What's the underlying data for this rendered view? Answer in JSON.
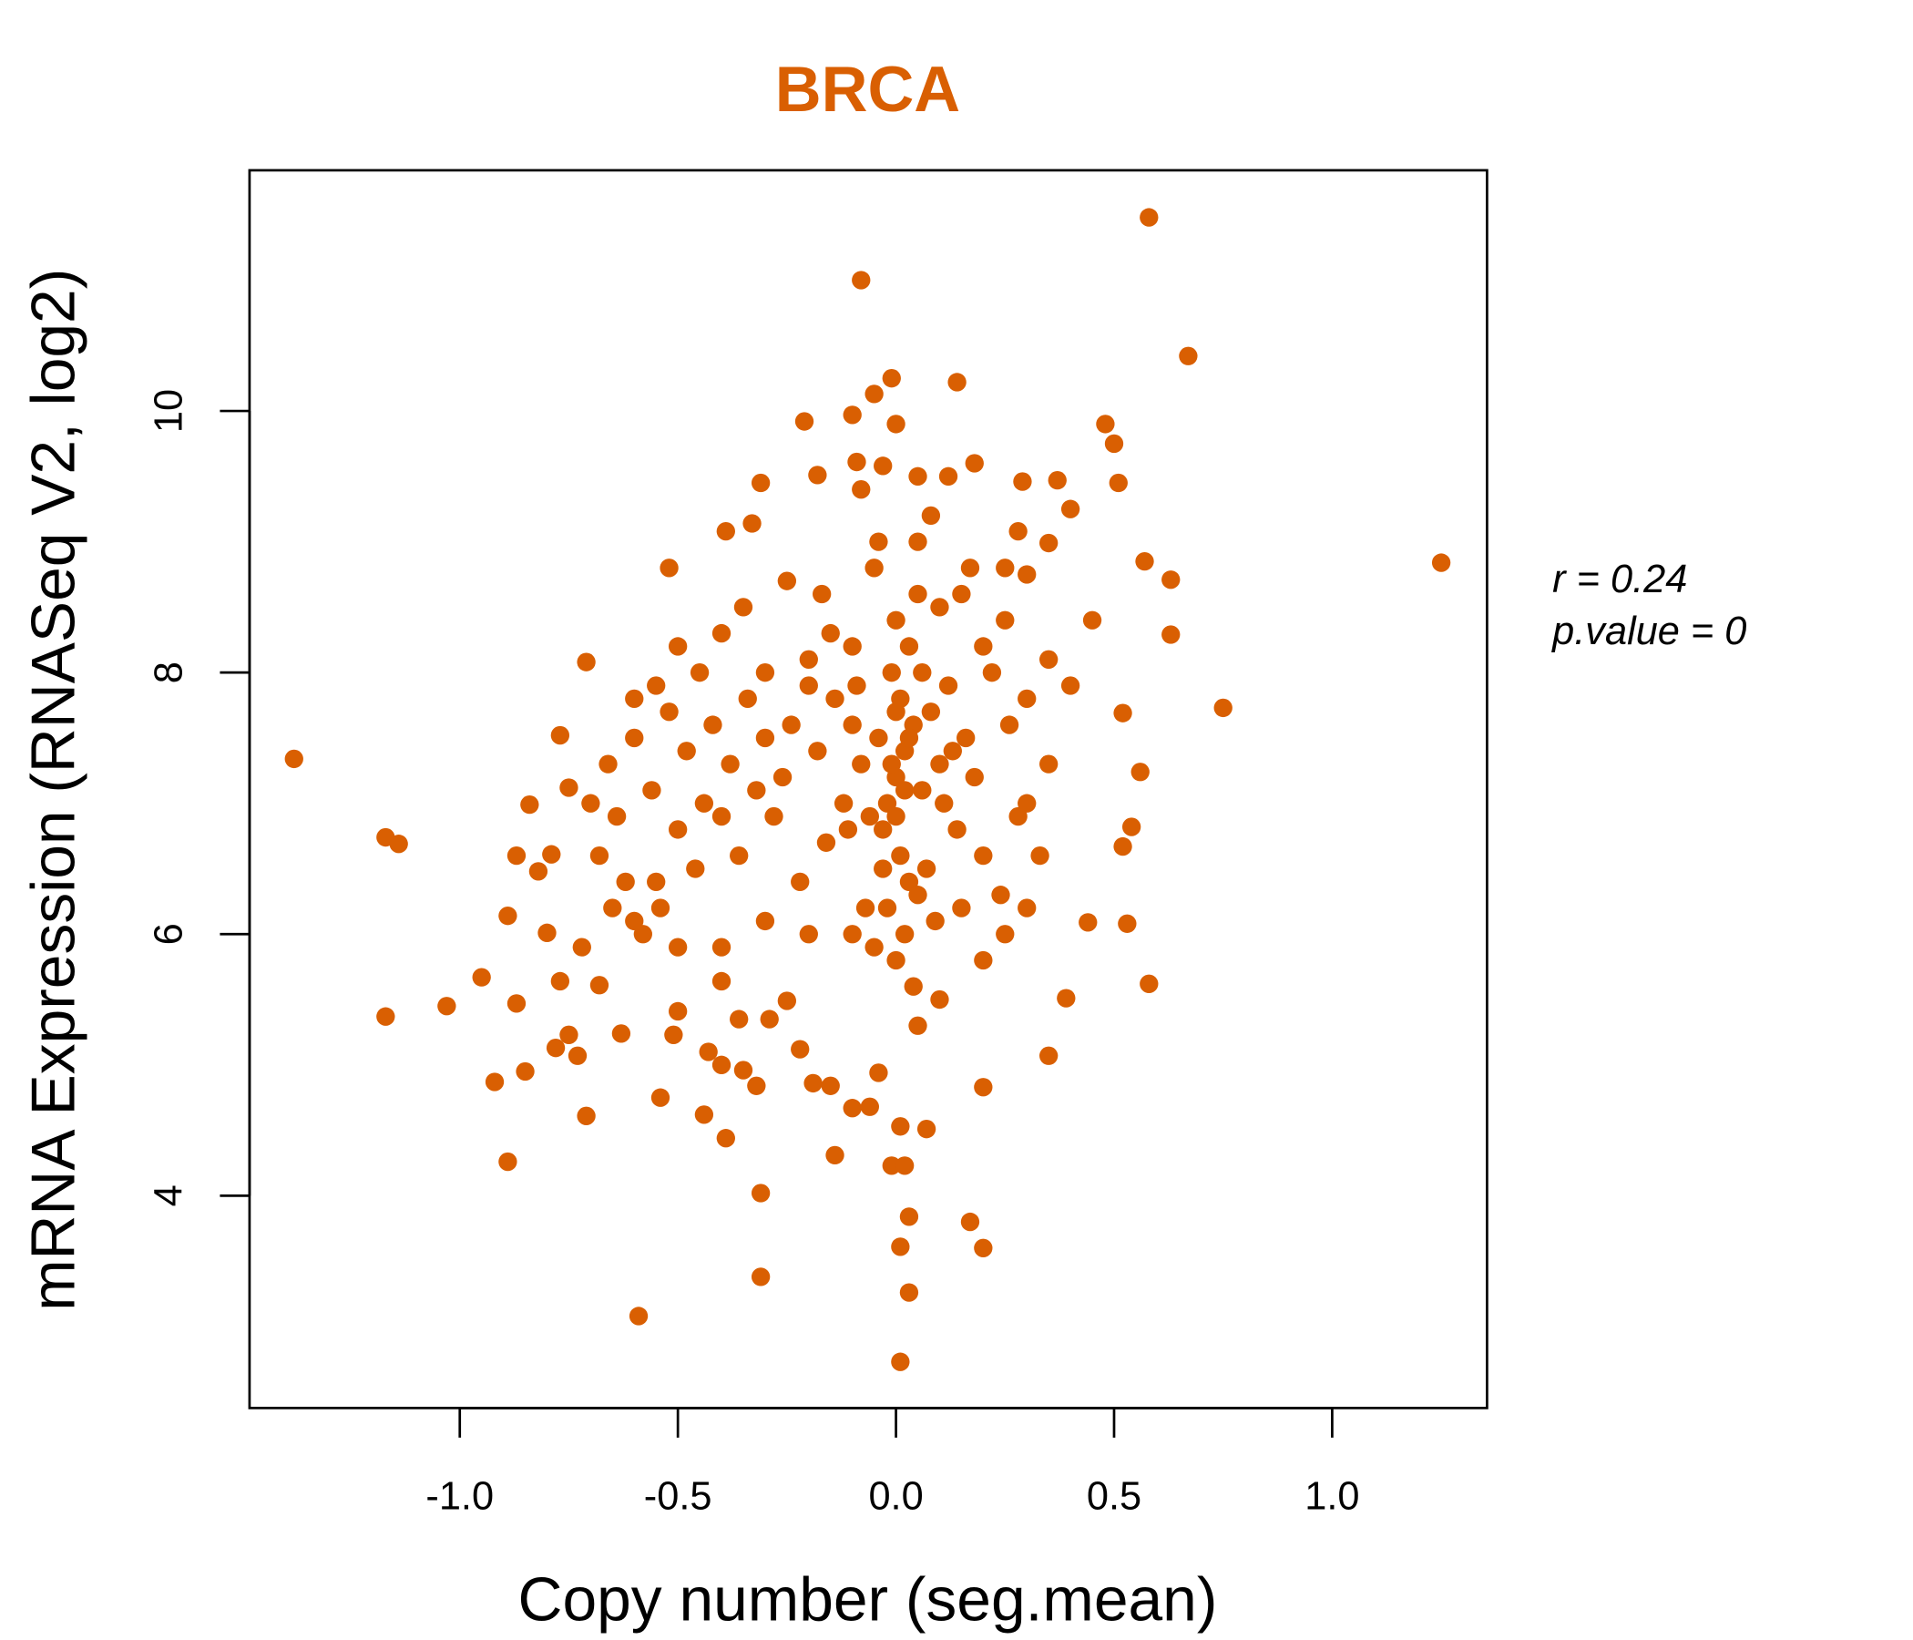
{
  "chart_data": {
    "type": "scatter",
    "title": "BRCA",
    "xlabel": "Copy number (seg.mean)",
    "ylabel": "mRNA Expression (RNASeq V2, log2)",
    "xlim": [
      -1.482,
      1.355
    ],
    "ylim": [
      2.377,
      11.84
    ],
    "xticks": [
      -1.0,
      -0.5,
      0.0,
      0.5,
      1.0
    ],
    "xtick_labels": [
      "-1.0",
      "-0.5",
      "0.0",
      "0.5",
      "1.0"
    ],
    "yticks": [
      4,
      6,
      8,
      10
    ],
    "ytick_labels": [
      "4",
      "6",
      "8",
      "10"
    ],
    "grid": false,
    "color": "#D95F02",
    "annotations": {
      "r": "r = 0.24",
      "p": "p.value = 0"
    },
    "points": [
      [
        -1.38,
        7.34
      ],
      [
        -1.17,
        6.74
      ],
      [
        -1.14,
        6.69
      ],
      [
        -1.17,
        5.37
      ],
      [
        -1.03,
        5.45
      ],
      [
        -0.95,
        5.67
      ],
      [
        -0.92,
        4.87
      ],
      [
        -0.89,
        4.26
      ],
      [
        -0.89,
        6.14
      ],
      [
        -0.87,
        5.47
      ],
      [
        -0.87,
        6.6
      ],
      [
        -0.84,
        6.99
      ],
      [
        -0.85,
        4.95
      ],
      [
        -0.71,
        4.61
      ],
      [
        -0.71,
        8.08
      ],
      [
        -0.59,
        3.08
      ],
      [
        -0.54,
        4.75
      ],
      [
        -0.52,
        8.8
      ],
      [
        -0.39,
        9.08
      ],
      [
        -0.31,
        9.45
      ],
      [
        -0.31,
        3.38
      ],
      [
        -0.31,
        4.02
      ],
      [
        -0.39,
        4.44
      ],
      [
        -0.44,
        4.62
      ],
      [
        -0.08,
        11.0
      ],
      [
        0.58,
        11.48
      ],
      [
        0.67,
        10.42
      ],
      [
        0.14,
        10.22
      ],
      [
        -0.01,
        10.25
      ],
      [
        -0.1,
        9.97
      ],
      [
        -0.21,
        9.92
      ],
      [
        -0.05,
        10.13
      ],
      [
        0.0,
        9.9
      ],
      [
        0.48,
        9.9
      ],
      [
        0.5,
        9.75
      ],
      [
        0.51,
        9.45
      ],
      [
        0.4,
        9.25
      ],
      [
        0.57,
        8.85
      ],
      [
        0.63,
        8.71
      ],
      [
        1.25,
        8.84
      ],
      [
        0.75,
        7.73
      ],
      [
        0.63,
        8.29
      ],
      [
        0.52,
        7.69
      ],
      [
        0.56,
        7.24
      ],
      [
        0.54,
        6.82
      ],
      [
        0.52,
        6.67
      ],
      [
        0.53,
        6.08
      ],
      [
        0.44,
        6.09
      ],
      [
        0.58,
        5.62
      ],
      [
        0.39,
        5.51
      ],
      [
        0.35,
        5.07
      ],
      [
        0.01,
        2.73
      ],
      [
        0.03,
        3.26
      ],
      [
        0.01,
        3.61
      ],
      [
        0.03,
        3.84
      ],
      [
        0.17,
        3.8
      ],
      [
        0.2,
        3.6
      ],
      [
        -0.01,
        4.23
      ],
      [
        0.02,
        4.23
      ],
      [
        -0.14,
        4.31
      ],
      [
        0.07,
        4.51
      ],
      [
        0.01,
        4.53
      ],
      [
        0.2,
        4.83
      ],
      [
        -0.18,
        9.51
      ],
      [
        -0.09,
        9.61
      ],
      [
        -0.03,
        9.58
      ],
      [
        0.18,
        9.6
      ],
      [
        0.29,
        9.46
      ],
      [
        0.37,
        9.47
      ],
      [
        -0.33,
        9.14
      ],
      [
        0.28,
        9.08
      ],
      [
        0.35,
        8.99
      ],
      [
        -0.77,
        7.52
      ],
      [
        -0.75,
        7.12
      ],
      [
        -0.79,
        6.61
      ],
      [
        -0.82,
        6.48
      ],
      [
        -0.8,
        6.01
      ],
      [
        -0.77,
        5.64
      ],
      [
        -0.75,
        5.23
      ],
      [
        -0.78,
        5.13
      ],
      [
        -0.73,
        5.07
      ],
      [
        -0.68,
        5.61
      ],
      [
        -0.63,
        5.24
      ],
      [
        -0.5,
        5.41
      ],
      [
        -0.51,
        5.23
      ],
      [
        -0.43,
        5.1
      ],
      [
        -0.4,
        5.0
      ],
      [
        -0.36,
        5.35
      ],
      [
        -0.35,
        4.96
      ],
      [
        -0.32,
        4.84
      ],
      [
        -0.29,
        5.35
      ],
      [
        -0.25,
        5.49
      ],
      [
        -0.22,
        5.12
      ],
      [
        -0.19,
        4.86
      ],
      [
        -0.15,
        4.84
      ],
      [
        -0.1,
        4.67
      ],
      [
        -0.06,
        4.68
      ],
      [
        -0.04,
        4.94
      ],
      [
        -0.4,
        5.64
      ],
      [
        -0.02,
        7.0
      ],
      [
        0,
        7.2
      ],
      [
        0.02,
        7.4
      ],
      [
        0.04,
        7.6
      ],
      [
        0.01,
        7.8
      ],
      [
        -0.01,
        8.0
      ],
      [
        0.03,
        8.2
      ],
      [
        0,
        8.4
      ],
      [
        0.05,
        8.6
      ],
      [
        -0.03,
        6.8
      ],
      [
        0.01,
        6.6
      ],
      [
        0.03,
        6.4
      ],
      [
        -0.02,
        6.2
      ],
      [
        0.02,
        6.0
      ],
      [
        0,
        5.8
      ],
      [
        0.04,
        5.6
      ],
      [
        -0.04,
        7.5
      ],
      [
        0.06,
        7.1
      ],
      [
        0.08,
        7.7
      ],
      [
        -0.06,
        6.9
      ],
      [
        0.07,
        6.5
      ],
      [
        0.1,
        7.3
      ],
      [
        -0.08,
        7.3
      ],
      [
        0.12,
        7.9
      ],
      [
        -0.1,
        7.6
      ],
      [
        0.14,
        6.8
      ],
      [
        -0.12,
        7.0
      ],
      [
        0.16,
        7.5
      ],
      [
        -0.14,
        7.8
      ],
      [
        0.18,
        7.2
      ],
      [
        -0.16,
        6.7
      ],
      [
        0.2,
        6.6
      ],
      [
        -0.18,
        7.4
      ],
      [
        0.22,
        8.0
      ],
      [
        -0.2,
        8.1
      ],
      [
        0.24,
        6.3
      ],
      [
        -0.22,
        6.4
      ],
      [
        0.26,
        7.6
      ],
      [
        -0.24,
        7.6
      ],
      [
        0.28,
        6.9
      ],
      [
        -0.26,
        7.2
      ],
      [
        0.3,
        7.0
      ],
      [
        -0.28,
        6.9
      ],
      [
        -0.3,
        7.5
      ],
      [
        -0.32,
        7.1
      ],
      [
        -0.34,
        7.8
      ],
      [
        -0.36,
        6.6
      ],
      [
        -0.38,
        7.3
      ],
      [
        -0.4,
        6.9
      ],
      [
        -0.42,
        7.6
      ],
      [
        -0.44,
        7.0
      ],
      [
        -0.46,
        6.5
      ],
      [
        -0.48,
        7.4
      ],
      [
        -0.5,
        6.8
      ],
      [
        -0.52,
        7.7
      ],
      [
        -0.54,
        6.2
      ],
      [
        -0.56,
        7.1
      ],
      [
        -0.58,
        6.0
      ],
      [
        -0.6,
        7.5
      ],
      [
        -0.62,
        6.4
      ],
      [
        -0.64,
        6.9
      ],
      [
        -0.66,
        7.3
      ],
      [
        -0.68,
        6.6
      ],
      [
        -0.7,
        7.0
      ],
      [
        -0.55,
        6.4
      ],
      [
        -0.45,
        8.0
      ],
      [
        -0.35,
        8.5
      ],
      [
        -0.25,
        8.7
      ],
      [
        -0.15,
        8.3
      ],
      [
        -0.05,
        8.8
      ],
      [
        0.05,
        9.0
      ],
      [
        0.15,
        8.6
      ],
      [
        0.25,
        8.4
      ],
      [
        0.35,
        8.1
      ],
      [
        0.45,
        8.4
      ],
      [
        0.4,
        7.9
      ],
      [
        0.35,
        7.3
      ],
      [
        0.3,
        6.2
      ],
      [
        0.25,
        6.0
      ],
      [
        0.2,
        5.8
      ],
      [
        0.1,
        5.5
      ],
      [
        0.05,
        5.3
      ],
      [
        -0.05,
        5.9
      ],
      [
        -0.1,
        6.0
      ],
      [
        -0.2,
        6.0
      ],
      [
        -0.3,
        6.1
      ],
      [
        -0.4,
        5.9
      ],
      [
        -0.5,
        5.9
      ],
      [
        -0.6,
        6.1
      ],
      [
        -0.65,
        6.2
      ],
      [
        -0.72,
        5.9
      ],
      [
        -0.55,
        7.9
      ],
      [
        -0.6,
        7.8
      ],
      [
        -0.5,
        8.2
      ],
      [
        -0.4,
        8.3
      ],
      [
        -0.3,
        8.0
      ],
      [
        -0.2,
        7.9
      ],
      [
        -0.1,
        8.2
      ],
      [
        0.1,
        8.5
      ],
      [
        0.2,
        8.2
      ],
      [
        0.3,
        7.8
      ],
      [
        0.33,
        6.6
      ],
      [
        0.15,
        6.2
      ],
      [
        0.0,
        6.9
      ],
      [
        0.02,
        7.1
      ],
      [
        -0.01,
        7.3
      ],
      [
        0.03,
        7.5
      ],
      [
        0.0,
        7.7
      ],
      [
        0.06,
        8.0
      ],
      [
        -0.03,
        6.5
      ],
      [
        0.05,
        6.3
      ],
      [
        0.09,
        6.1
      ],
      [
        -0.07,
        6.2
      ],
      [
        0.11,
        7.0
      ],
      [
        -0.09,
        7.9
      ],
      [
        0.13,
        7.4
      ],
      [
        -0.11,
        6.8
      ],
      [
        0.17,
        8.8
      ],
      [
        -0.17,
        8.6
      ],
      [
        0.08,
        9.2
      ],
      [
        -0.08,
        9.4
      ],
      [
        0.12,
        9.5
      ],
      [
        0.05,
        9.5
      ],
      [
        -0.04,
        9.0
      ],
      [
        0.25,
        8.8
      ],
      [
        0.3,
        8.75
      ]
    ]
  }
}
